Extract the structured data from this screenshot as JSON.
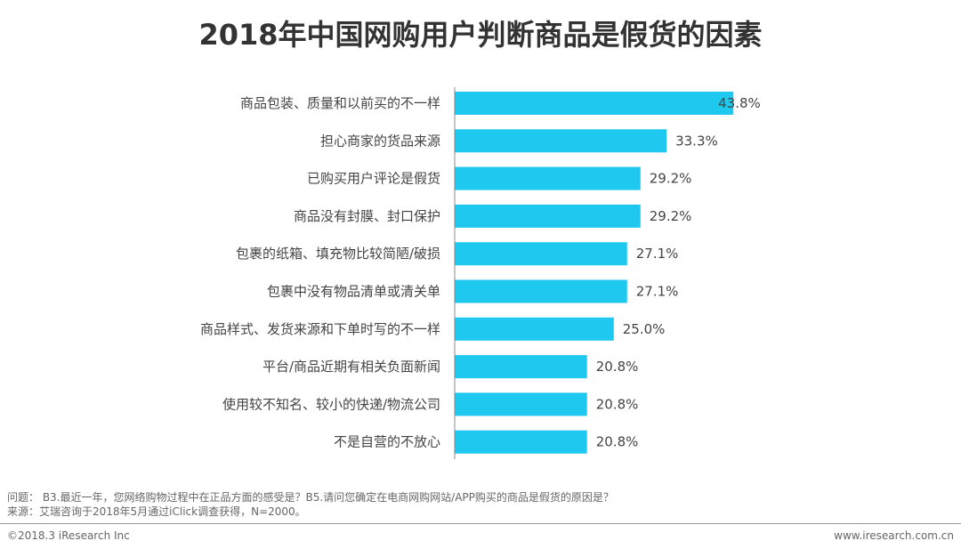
{
  "chart_data": {
    "type": "bar",
    "orientation": "horizontal",
    "title": "2018年中国网购用户判断商品是假货的因素",
    "categories": [
      "商品包装、质量和以前买的不一样",
      "担心商家的货品来源",
      "已购买用户评论是假货",
      "商品没有封膜、封口保护",
      "包裹的纸箱、填充物比较简陋/破损",
      "包裹中没有物品清单或清关单",
      "商品样式、发货来源和下单时写的不一样",
      "平台/商品近期有相关负面新闻",
      "使用较不知名、较小的快递/物流公司",
      "不是自营的不放心"
    ],
    "values": [
      43.8,
      33.3,
      29.2,
      29.2,
      27.1,
      27.1,
      25.0,
      20.8,
      20.8,
      20.8
    ],
    "value_labels": [
      "43.8%",
      "33.3%",
      "29.2%",
      "29.2%",
      "27.1%",
      "27.1%",
      "25.0%",
      "20.8%",
      "20.8%",
      "20.8%"
    ],
    "unit": "%",
    "xlim": [
      0,
      50
    ],
    "bar_color": "#1fc8ef",
    "grid": false
  },
  "footer": {
    "question": "问题： B3.最近一年，您网络购物过程中在正品方面的感受是？B5.请问您确定在电商网购网站/APP购买的商品是假货的原因是？",
    "source": "来源：艾瑞咨询于2018年5月通过iClick调查获得，N=2000。",
    "copyright": "©2018.3 iResearch Inc",
    "website": "www.iresearch.com.cn"
  }
}
